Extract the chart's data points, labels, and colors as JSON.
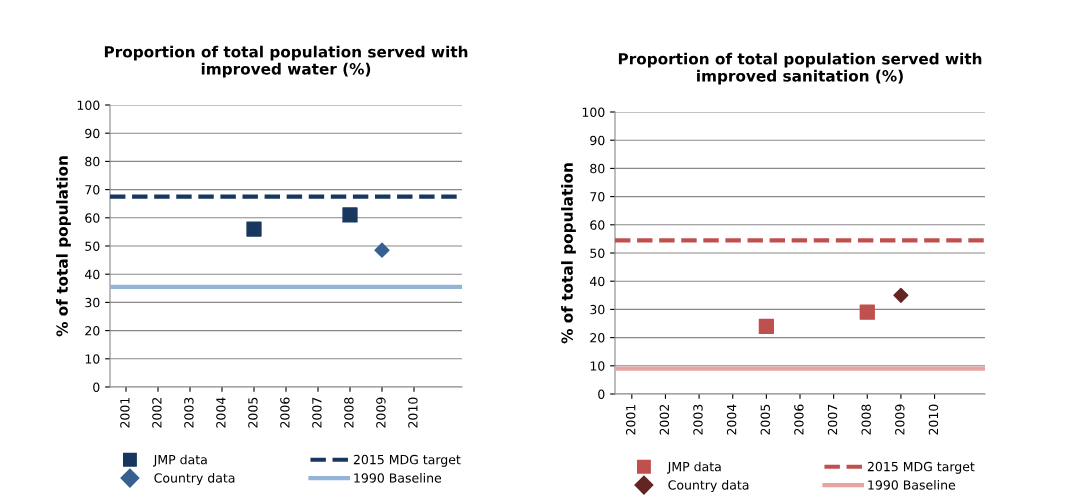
{
  "chart_data": [
    {
      "type": "scatter",
      "title": "Proportion of total population served with\nimproved water (%)",
      "ylabel": "% of total population",
      "categories": [
        "2001",
        "2002",
        "2003",
        "2004",
        "2005",
        "2006",
        "2007",
        "2008",
        "2009",
        "2010"
      ],
      "series": [
        {
          "name": "JMP data",
          "color": "#17375e",
          "marker": "square",
          "values": [
            null,
            null,
            null,
            null,
            56,
            null,
            null,
            61,
            null,
            null
          ]
        },
        {
          "name": "Country data",
          "color": "#376092",
          "marker": "diamond",
          "values": [
            null,
            null,
            null,
            null,
            null,
            null,
            null,
            null,
            48.5,
            null
          ]
        }
      ],
      "ref_lines": [
        {
          "axis": "y",
          "value": 67.5,
          "label": "2015 MDG target",
          "color": "#17375e",
          "line_style": "dashed"
        },
        {
          "axis": "y",
          "value": 35.5,
          "label": "1990 Baseline",
          "color": "#95b3d7",
          "line_style": "solid"
        }
      ],
      "ylim": [
        0,
        100
      ],
      "yticks": [
        0,
        10,
        20,
        30,
        40,
        50,
        60,
        70,
        80,
        90,
        100
      ],
      "grid": "y",
      "legend": "bottom"
    },
    {
      "type": "scatter",
      "title": "Proportion of total population served with\nimproved sanitation (%)",
      "ylabel": "% of total population",
      "categories": [
        "2001",
        "2002",
        "2003",
        "2004",
        "2005",
        "2006",
        "2007",
        "2008",
        "2009",
        "2010"
      ],
      "series": [
        {
          "name": "JMP data",
          "color": "#c0504d",
          "marker": "square",
          "values": [
            null,
            null,
            null,
            null,
            24,
            null,
            null,
            29,
            null,
            null
          ]
        },
        {
          "name": "Country data",
          "color": "#632523",
          "marker": "diamond",
          "values": [
            null,
            null,
            null,
            null,
            null,
            null,
            null,
            null,
            35,
            null
          ]
        }
      ],
      "ref_lines": [
        {
          "axis": "y",
          "value": 54.5,
          "label": "2015 MDG target",
          "color": "#c0504d",
          "line_style": "dashed"
        },
        {
          "axis": "y",
          "value": 9,
          "label": "1990 Baseline",
          "color": "#e6a5a3",
          "line_style": "solid"
        }
      ],
      "ylim": [
        0,
        100
      ],
      "yticks": [
        0,
        10,
        20,
        30,
        40,
        50,
        60,
        70,
        80,
        90,
        100
      ],
      "grid": "y",
      "legend": "bottom"
    }
  ]
}
